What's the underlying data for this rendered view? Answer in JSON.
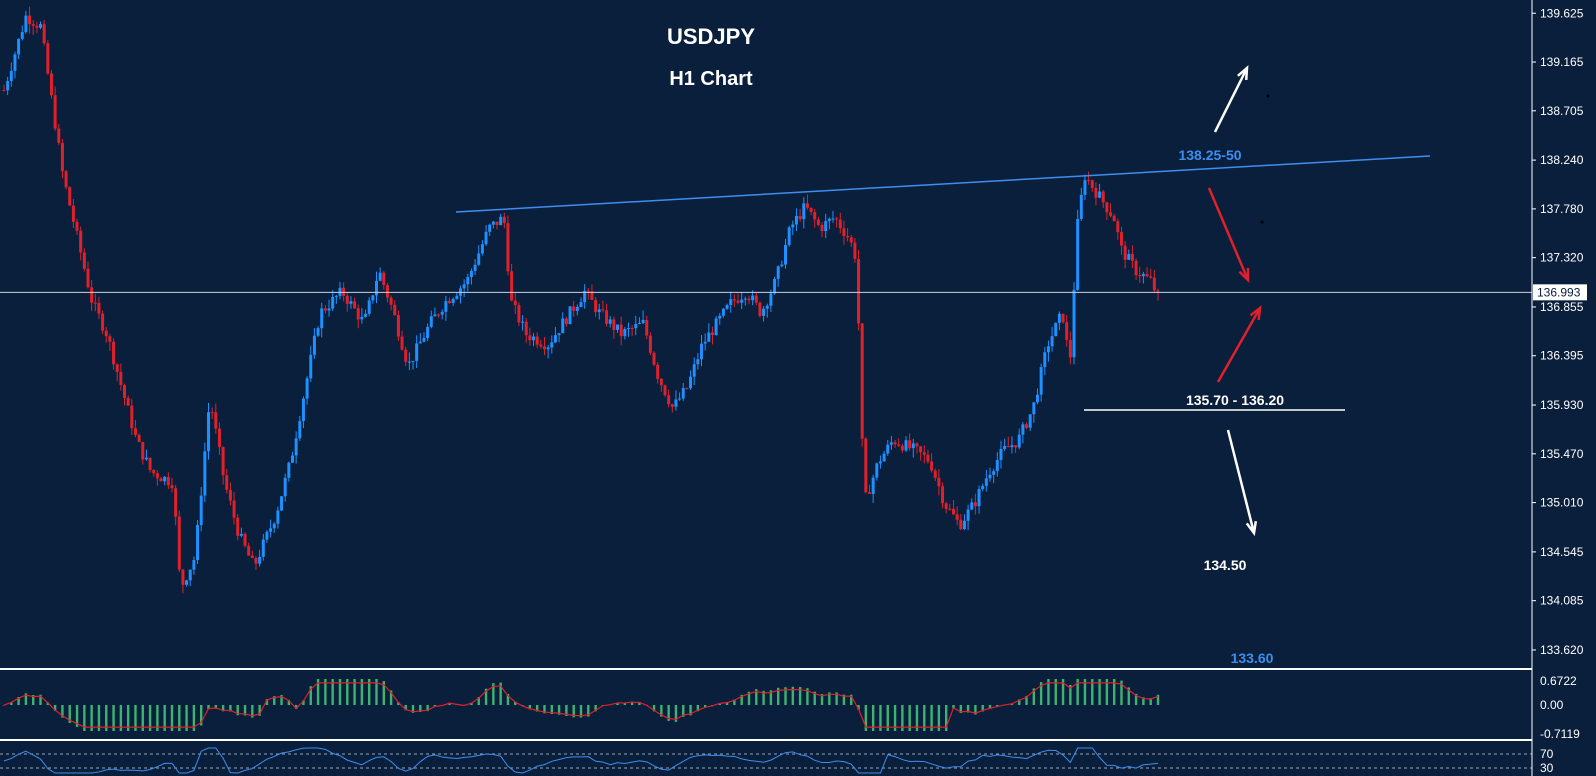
{
  "title": "USDJPY",
  "subtitle": "H1 Chart",
  "price_axis": {
    "ticks": [
      "139.625",
      "139.165",
      "138.705",
      "138.240",
      "137.780",
      "137.320",
      "136.855",
      "136.395",
      "135.930",
      "135.470",
      "135.010",
      "134.545",
      "134.085",
      "133.620"
    ],
    "current_price": "136.993"
  },
  "annotations": {
    "resistance": "138.25-50",
    "support": "135.70 - 136.20",
    "target_low": "134.50",
    "target_lower": "133.60"
  },
  "macd_axis": {
    "ticks": [
      "0.6722",
      "0.00",
      "-0.7119"
    ]
  },
  "rsi_axis": {
    "ticks": [
      "70",
      "30"
    ]
  },
  "colors": {
    "background": "#0a1f3b",
    "bull": "#1e90ff",
    "bear": "#e0202a",
    "resistance_line": "#3d8ef0",
    "histogram": "#3cb371",
    "signal": "#e0202a",
    "arrow_up": "#ffffff",
    "arrow_red": "#e0202a"
  },
  "chart_data": {
    "type": "candlestick",
    "timeframe": "H1",
    "ylim": [
      133.45,
      139.75
    ],
    "price_path": [
      [
        0,
        138.9
      ],
      [
        3,
        139.6
      ],
      [
        5,
        139.5
      ],
      [
        8,
        138.1
      ],
      [
        10,
        137.5
      ],
      [
        12,
        136.9
      ],
      [
        14,
        136.6
      ],
      [
        16,
        136.1
      ],
      [
        18,
        135.6
      ],
      [
        20,
        135.3
      ],
      [
        23,
        135.2
      ],
      [
        24,
        134.2
      ],
      [
        26,
        134.5
      ],
      [
        28,
        136.0
      ],
      [
        30,
        135.2
      ],
      [
        32,
        134.7
      ],
      [
        34,
        134.4
      ],
      [
        37,
        134.9
      ],
      [
        39,
        135.4
      ],
      [
        41,
        136.1
      ],
      [
        43,
        136.8
      ],
      [
        46,
        137.0
      ],
      [
        49,
        136.7
      ],
      [
        51,
        137.2
      ],
      [
        53,
        136.8
      ],
      [
        55,
        136.3
      ],
      [
        58,
        136.7
      ],
      [
        60,
        136.9
      ],
      [
        63,
        137.1
      ],
      [
        66,
        137.6
      ],
      [
        68,
        137.7
      ],
      [
        69,
        136.9
      ],
      [
        71,
        136.6
      ],
      [
        74,
        136.5
      ],
      [
        77,
        136.8
      ],
      [
        79,
        137.0
      ],
      [
        81,
        136.8
      ],
      [
        84,
        136.6
      ],
      [
        87,
        136.7
      ],
      [
        89,
        136.2
      ],
      [
        91,
        135.9
      ],
      [
        93,
        136.1
      ],
      [
        95,
        136.5
      ],
      [
        97,
        136.7
      ],
      [
        99,
        136.9
      ],
      [
        101,
        137.0
      ],
      [
        103,
        136.8
      ],
      [
        105,
        137.1
      ],
      [
        107,
        137.6
      ],
      [
        109,
        137.8
      ],
      [
        111,
        137.6
      ],
      [
        113,
        137.7
      ],
      [
        115,
        137.5
      ],
      [
        116,
        137.3
      ],
      [
        117,
        135.0
      ],
      [
        119,
        135.4
      ],
      [
        121,
        135.6
      ],
      [
        124,
        135.5
      ],
      [
        126,
        135.4
      ],
      [
        128,
        135.0
      ],
      [
        130,
        134.8
      ],
      [
        132,
        135.0
      ],
      [
        134,
        135.3
      ],
      [
        136,
        135.5
      ],
      [
        138,
        135.6
      ],
      [
        140,
        135.9
      ],
      [
        142,
        136.5
      ],
      [
        144,
        136.8
      ],
      [
        145,
        136.3
      ],
      [
        146,
        137.6
      ],
      [
        147,
        138.1
      ],
      [
        149,
        137.9
      ],
      [
        151,
        137.7
      ],
      [
        152,
        137.4
      ],
      [
        154,
        137.2
      ],
      [
        156,
        137.1
      ],
      [
        157,
        136.95
      ]
    ],
    "series": [
      {
        "name": "MACD",
        "range": [
          -0.7119,
          0.6722
        ]
      },
      {
        "name": "RSI",
        "levels": [
          70,
          30
        ]
      }
    ]
  }
}
